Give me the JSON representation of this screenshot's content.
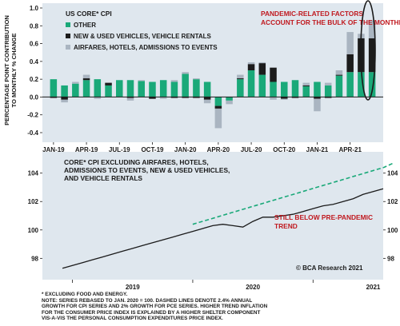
{
  "colors": {
    "other": "#1aa979",
    "vehicles": "#1c1c1c",
    "airfares": "#aab5c1",
    "panel": "#dfe7ee",
    "red": "#c0191f",
    "line": "#1a1a1a",
    "trend": "#1aa979"
  },
  "chart_data": [
    {
      "type": "bar",
      "stacked": true,
      "title": "US CORE* CPI",
      "ylabel": "PERCENTAGE POINT CONTRIBUTION TO MONTHLY % CHANGE",
      "ylim": [
        -0.4,
        1.0
      ],
      "yticks": [
        "1.0",
        "0.8",
        "0.6",
        "0.4",
        "0.2",
        "0.0",
        "-0.2",
        "-0.4"
      ],
      "yticks_values": [
        1.0,
        0.8,
        0.6,
        0.4,
        0.2,
        0.0,
        -0.2,
        -0.4
      ],
      "xtick_labels": [
        "JAN-19",
        "APR-19",
        "JUL-19",
        "OCT-19",
        "JAN-20",
        "APR-20",
        "JUL-20",
        "OCT-20",
        "JAN-21",
        "APR-21"
      ],
      "xtick_indices": [
        0,
        3,
        6,
        9,
        12,
        15,
        18,
        21,
        24,
        27
      ],
      "grid": false,
      "legend_position": "top-left",
      "categories": [
        "Jan-19",
        "Feb-19",
        "Mar-19",
        "Apr-19",
        "May-19",
        "Jun-19",
        "Jul-19",
        "Aug-19",
        "Sep-19",
        "Oct-19",
        "Nov-19",
        "Dec-19",
        "Jan-20",
        "Feb-20",
        "Mar-20",
        "Apr-20",
        "May-20",
        "Jun-20",
        "Jul-20",
        "Aug-20",
        "Sep-20",
        "Oct-20",
        "Nov-20",
        "Dec-20",
        "Jan-21",
        "Feb-21",
        "Mar-21",
        "Apr-21",
        "May-21",
        "Jun-21"
      ],
      "series": [
        {
          "name": "OTHER",
          "values": [
            0.2,
            0.13,
            0.15,
            0.19,
            0.2,
            0.13,
            0.19,
            0.19,
            0.18,
            0.17,
            0.19,
            0.17,
            0.26,
            0.2,
            0.17,
            -0.1,
            -0.04,
            0.2,
            0.3,
            0.25,
            0.17,
            0.17,
            0.19,
            0.12,
            0.17,
            0.13,
            0.24,
            0.28,
            0.28,
            0.28
          ]
        },
        {
          "name": "NEW & USED VEHICLES, VEHICLE RENTALS",
          "values": [
            -0.01,
            -0.03,
            0.0,
            0.02,
            0.0,
            0.03,
            0.0,
            -0.01,
            0.0,
            -0.02,
            0.0,
            -0.01,
            -0.01,
            -0.01,
            -0.03,
            -0.03,
            0.0,
            0.01,
            0.07,
            0.13,
            0.16,
            -0.02,
            -0.01,
            0.01,
            -0.02,
            -0.01,
            0.01,
            0.2,
            0.38,
            0.38
          ]
        },
        {
          "name": "AIRFARES, HOTELS, ADMISSIONS TO EVENTS",
          "values": [
            0.0,
            -0.03,
            0.02,
            0.04,
            -0.02,
            0.0,
            0.0,
            -0.03,
            0.01,
            0.0,
            -0.02,
            0.02,
            0.02,
            0.01,
            -0.04,
            -0.22,
            -0.04,
            0.04,
            0.02,
            0.01,
            -0.03,
            -0.01,
            0.0,
            0.03,
            -0.14,
            0.03,
            0.05,
            0.25,
            0.05,
            0.2
          ]
        }
      ],
      "annotation": "PANDEMIC-RELATED FACTORS ACCOUNT FOR THE BULK OF THE MONTHLY INCREASE"
    },
    {
      "type": "line",
      "title": "CORE* CPI EXCLUDING AIRFARES, HOTELS, ADMISSIONS TO EVENTS, NEW & USED VEHICLES, AND VEHICLE RENTALS",
      "ylim": [
        96.5,
        105.5
      ],
      "yticks": [
        "104",
        "102",
        "100",
        "98"
      ],
      "yticks_values": [
        104,
        102,
        100,
        98
      ],
      "xlim": [
        "2018-10",
        "2021-08"
      ],
      "xtick_labels": [
        "2019",
        "2020",
        "2021"
      ],
      "grid": false,
      "series": [
        {
          "values": [
            97.3,
            97.5,
            97.7,
            97.9,
            98.1,
            98.3,
            98.5,
            98.7,
            98.9,
            99.1,
            99.3,
            99.5,
            99.7,
            99.9,
            100.1,
            100.3,
            100.4,
            100.3,
            100.2,
            100.6,
            100.9,
            100.9,
            101.0,
            101.1,
            101.3,
            101.5,
            101.7,
            101.8,
            102.0,
            102.2,
            102.5,
            102.7,
            102.9
          ]
        },
        {
          "values": [
            100.4,
            100.6,
            100.8,
            101.0,
            101.2,
            101.4,
            101.6,
            101.8,
            102.0,
            102.2,
            102.4,
            102.6,
            102.8,
            103.0,
            103.2,
            103.4,
            103.6,
            103.8,
            104.0,
            104.2,
            104.4,
            104.7
          ]
        }
      ],
      "annotation": "STILL BELOW PRE-PANDEMIC TREND",
      "source": "© BCA Research 2021"
    }
  ],
  "notes": {
    "line1": "* EXCLUDING FOOD AND ENERGY.",
    "line2": "NOTE: SERIES REBASED TO JAN. 2020 = 100. DASHED LINES DENOTE 2.4% ANNUAL",
    "line3": "GROWTH FOR CPI SERIES AND 2% GROWTH FOR PCE SERIES. HIGHER TREND INFLATION",
    "line4": "FOR THE CONSUMER PRICE INDEX IS EXPLAINED BY A HIGHER SHELTER COMPONENT",
    "line5": "VIS-A-VIS THE PERSONAL CONSUMPTION EXPENDITURES PRICE INDEX."
  }
}
